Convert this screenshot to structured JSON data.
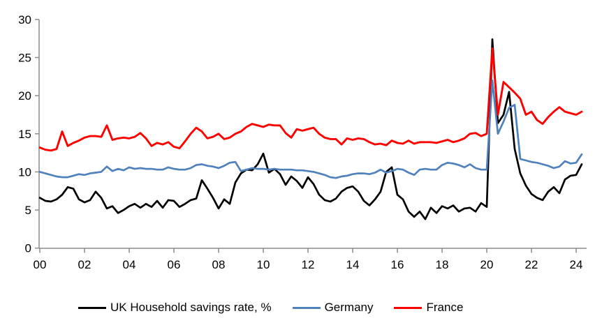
{
  "chart_data": {
    "type": "line",
    "title": "",
    "subtitle": "",
    "frequency": "quarterly",
    "x_start": 2000,
    "x_step_years": 0.25,
    "x_axis": {
      "tick_labels": [
        "00",
        "02",
        "04",
        "06",
        "08",
        "10",
        "12",
        "14",
        "16",
        "18",
        "20",
        "22",
        "24"
      ],
      "tick_years": [
        2000,
        2002,
        2004,
        2006,
        2008,
        2010,
        2012,
        2014,
        2016,
        2018,
        2020,
        2022,
        2024
      ],
      "range": [
        2000,
        2024.3
      ]
    },
    "y_axis": {
      "ticks": [
        0,
        5,
        10,
        15,
        20,
        25,
        30
      ],
      "range": [
        0,
        30
      ]
    },
    "grid": false,
    "legend_position": "bottom",
    "axis_color": "#8c8c8c",
    "label_color": "#000000",
    "series": [
      {
        "name": "UK Household savings rate, %",
        "color": "#000000",
        "values": [
          6.6,
          6.2,
          6.1,
          6.4,
          7.0,
          8.0,
          7.8,
          6.4,
          6.0,
          6.3,
          7.4,
          6.6,
          5.2,
          5.5,
          4.6,
          5.0,
          5.5,
          5.8,
          5.3,
          5.8,
          5.4,
          6.2,
          5.3,
          6.3,
          6.2,
          5.4,
          5.8,
          6.3,
          6.5,
          8.9,
          7.8,
          6.6,
          5.2,
          6.4,
          5.8,
          8.6,
          9.8,
          10.3,
          10.2,
          11.0,
          12.4,
          9.9,
          10.4,
          9.7,
          8.3,
          9.4,
          8.8,
          7.9,
          9.3,
          8.4,
          7.0,
          6.3,
          6.1,
          6.5,
          7.4,
          7.9,
          8.1,
          7.4,
          6.2,
          5.6,
          6.4,
          7.4,
          10.0,
          10.6,
          7.0,
          6.4,
          4.8,
          4.1,
          4.8,
          3.8,
          5.3,
          4.6,
          5.5,
          5.2,
          5.6,
          4.8,
          5.2,
          5.3,
          4.8,
          5.9,
          5.4,
          27.4,
          16.4,
          17.5,
          20.5,
          13.0,
          9.8,
          8.2,
          7.1,
          6.6,
          6.3,
          7.4,
          8.0,
          7.2,
          9.0,
          9.5,
          9.6,
          11.0
        ]
      },
      {
        "name": "Germany",
        "color": "#4F81BD",
        "values": [
          10.0,
          9.8,
          9.6,
          9.4,
          9.3,
          9.3,
          9.5,
          9.7,
          9.6,
          9.8,
          9.9,
          10.0,
          10.7,
          10.1,
          10.4,
          10.2,
          10.6,
          10.4,
          10.5,
          10.4,
          10.4,
          10.3,
          10.3,
          10.6,
          10.4,
          10.3,
          10.3,
          10.5,
          10.9,
          11.0,
          10.8,
          10.7,
          10.5,
          10.8,
          11.2,
          11.3,
          10.1,
          10.3,
          10.5,
          10.4,
          10.4,
          10.3,
          10.4,
          10.3,
          10.3,
          10.3,
          10.2,
          10.2,
          10.1,
          10.0,
          9.8,
          9.6,
          9.3,
          9.2,
          9.4,
          9.5,
          9.7,
          9.8,
          9.8,
          9.7,
          9.9,
          10.3,
          9.9,
          10.1,
          10.4,
          10.3,
          9.9,
          9.6,
          10.3,
          10.4,
          10.3,
          10.3,
          10.9,
          11.2,
          11.1,
          10.9,
          10.6,
          11.0,
          10.5,
          10.3,
          10.3,
          22.0,
          15.0,
          16.6,
          18.4,
          18.8,
          11.7,
          11.5,
          11.3,
          11.2,
          11.0,
          10.8,
          10.5,
          10.7,
          11.4,
          11.1,
          11.2,
          12.3
        ]
      },
      {
        "name": "France",
        "color": "#FF0000",
        "values": [
          13.2,
          12.9,
          12.8,
          13.0,
          15.3,
          13.4,
          13.8,
          14.1,
          14.5,
          14.7,
          14.7,
          14.6,
          16.1,
          14.2,
          14.4,
          14.5,
          14.4,
          14.6,
          15.1,
          14.4,
          13.4,
          13.8,
          13.6,
          13.9,
          13.3,
          13.1,
          14.0,
          15.0,
          15.8,
          15.3,
          14.4,
          14.6,
          15.0,
          14.3,
          14.5,
          15.0,
          15.3,
          15.9,
          16.3,
          16.1,
          15.9,
          16.2,
          16.1,
          16.1,
          15.1,
          14.5,
          15.6,
          15.4,
          15.6,
          15.8,
          15.0,
          14.5,
          14.3,
          14.3,
          13.6,
          14.4,
          14.2,
          14.4,
          14.3,
          13.9,
          13.6,
          13.7,
          13.5,
          14.1,
          13.8,
          13.7,
          14.1,
          13.7,
          13.9,
          13.9,
          13.9,
          13.8,
          14.0,
          14.2,
          13.9,
          14.1,
          14.4,
          15.0,
          15.1,
          14.7,
          15.0,
          26.2,
          17.5,
          21.8,
          21.1,
          20.4,
          19.6,
          17.5,
          17.9,
          16.8,
          16.3,
          17.2,
          17.9,
          18.5,
          17.9,
          17.7,
          17.5,
          17.9
        ]
      }
    ]
  },
  "legend": {
    "items": [
      {
        "label": "UK Household savings rate, %",
        "color": "#000000"
      },
      {
        "label": "Germany",
        "color": "#4F81BD"
      },
      {
        "label": "France",
        "color": "#FF0000"
      }
    ]
  }
}
